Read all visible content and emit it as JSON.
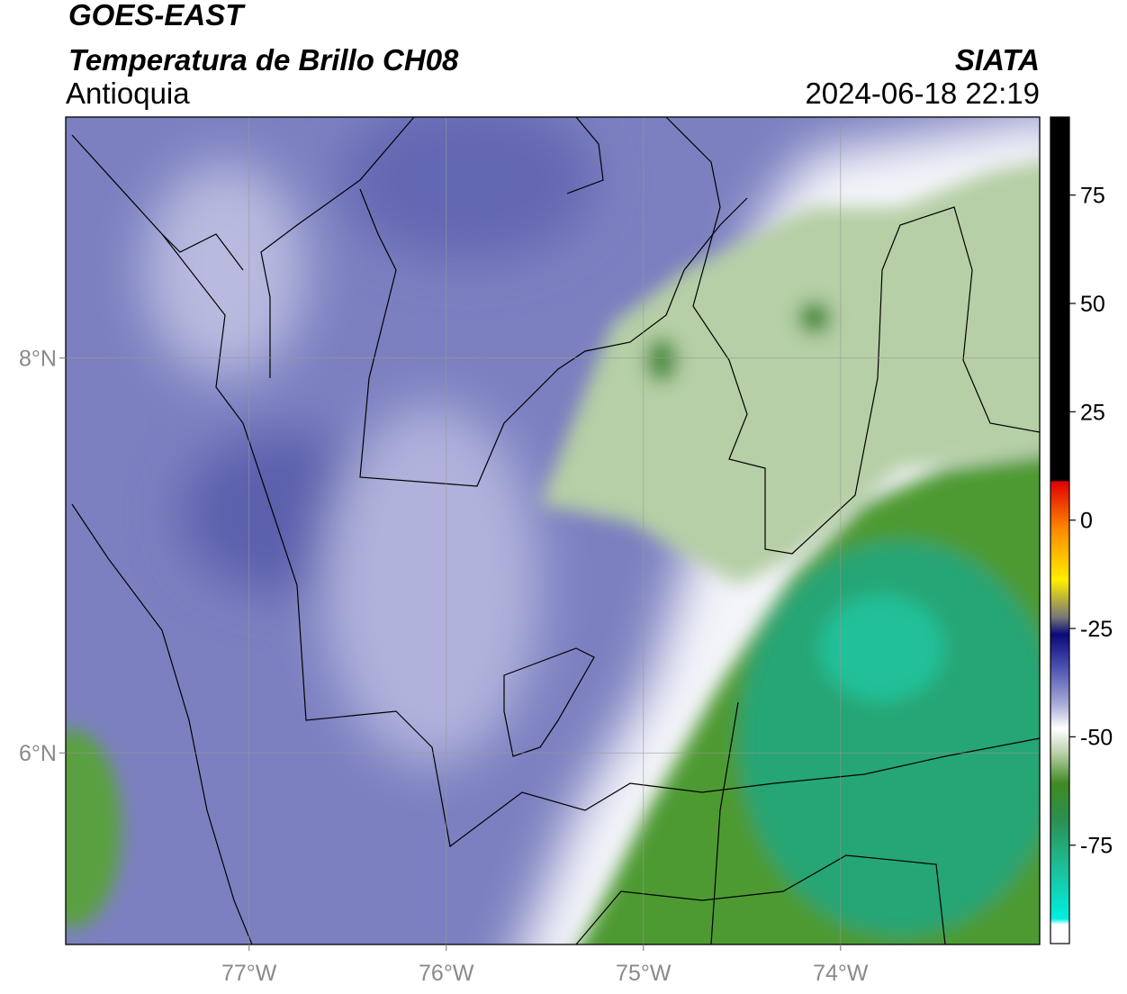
{
  "header": {
    "title": "GOES-EAST",
    "subtitle": "Temperatura de Brillo CH08",
    "source": "SIATA",
    "region": "Antioquia",
    "timestamp": "2024-06-18 22:19"
  },
  "map": {
    "xlim": [
      -77.93,
      -72.99
    ],
    "ylim": [
      5.03,
      9.22
    ],
    "xticks": [
      {
        "value": -77,
        "label": "77°W"
      },
      {
        "value": -76,
        "label": "76°W"
      },
      {
        "value": -75,
        "label": "75°W"
      },
      {
        "value": -74,
        "label": "74°W"
      }
    ],
    "yticks": [
      {
        "value": 6,
        "label": "6°N"
      },
      {
        "value": 8,
        "label": "8°N"
      }
    ],
    "grid": true
  },
  "colorbar": {
    "lim": [
      -97.7,
      93
    ],
    "ticks": [
      -75,
      -50,
      -25,
      0,
      25,
      50,
      75
    ]
  }
}
